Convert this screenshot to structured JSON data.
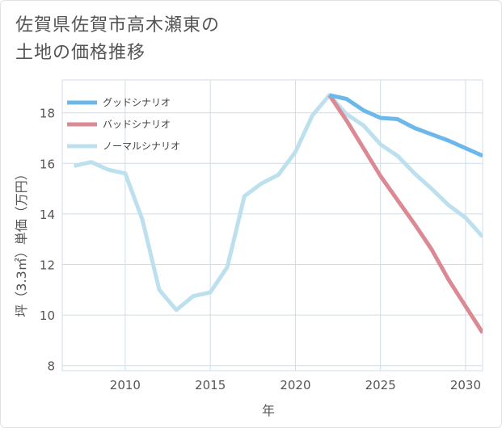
{
  "header": {
    "title_line1": "佐賀県佐賀市高木瀬東の",
    "title_line2": "土地の価格推移"
  },
  "colors": {
    "good": "#6cb8ea",
    "bad": "#db8a94",
    "normal": "#bde0ee",
    "grid": "#d0dde8",
    "background": "#ffffff"
  },
  "chart_data": {
    "type": "line",
    "xlabel": "年",
    "ylabel": "坪（3.3㎡）単価（万円）",
    "xlim": [
      2006.3,
      2031
    ],
    "ylim": [
      7.8,
      19.3
    ],
    "xticks": [
      2010,
      2015,
      2020,
      2025,
      2030
    ],
    "yticks": [
      8,
      10,
      12,
      14,
      16,
      18
    ],
    "grid": true,
    "legend_position": "top-left",
    "series": [
      {
        "name": "グッドシナリオ",
        "color": "#6cb8ea",
        "x": [
          2022,
          2023,
          2024,
          2025,
          2026,
          2027,
          2028,
          2029,
          2030,
          2031
        ],
        "y": [
          18.7,
          18.55,
          18.1,
          17.8,
          17.75,
          17.4,
          17.15,
          16.9,
          16.6,
          16.3
        ]
      },
      {
        "name": "バッドシナリオ",
        "color": "#db8a94",
        "x": [
          2022,
          2023,
          2024,
          2025,
          2026,
          2027,
          2028,
          2029,
          2030,
          2031
        ],
        "y": [
          18.7,
          17.7,
          16.6,
          15.5,
          14.55,
          13.6,
          12.6,
          11.4,
          10.35,
          9.3
        ]
      },
      {
        "name": "ノーマルシナリオ",
        "color": "#bde0ee",
        "x": [
          2007,
          2008,
          2009,
          2010,
          2011,
          2012,
          2013,
          2014,
          2015,
          2016,
          2017,
          2018,
          2019,
          2020,
          2021,
          2022,
          2023,
          2024,
          2025,
          2026,
          2027,
          2028,
          2029,
          2030,
          2031
        ],
        "y": [
          15.9,
          16.05,
          15.75,
          15.6,
          13.8,
          11.0,
          10.2,
          10.75,
          10.9,
          11.9,
          14.7,
          15.2,
          15.55,
          16.45,
          17.9,
          18.7,
          17.95,
          17.5,
          16.75,
          16.3,
          15.6,
          15.0,
          14.35,
          13.85,
          13.1
        ]
      }
    ]
  }
}
